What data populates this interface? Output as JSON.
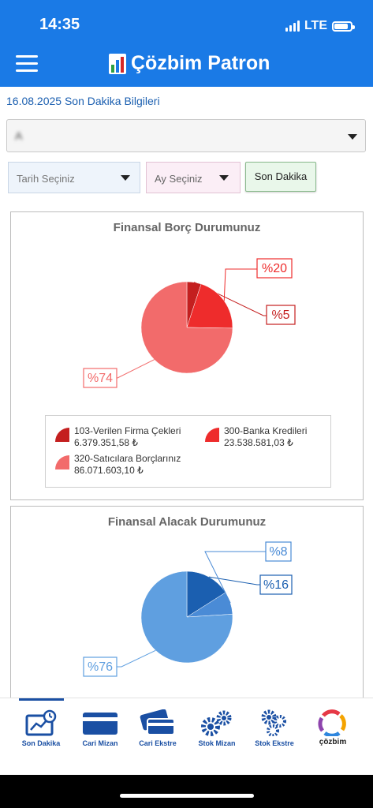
{
  "status_bar": {
    "time": "14:35",
    "network": "LTE"
  },
  "header": {
    "title": "Çözbim Patron"
  },
  "date_line": "16.08.2025 Son Dakika Bilgileri",
  "company_select": {
    "value": "A"
  },
  "filters": {
    "date_placeholder": "Tarih Seçiniz",
    "month_placeholder": "Ay Seçiniz",
    "son_dakika_label": "Son Dakika"
  },
  "colors": {
    "header": "#1a7ae6",
    "debt_dark": "#c41f1f",
    "debt_mid": "#ee2c2c",
    "debt_light": "#f26b6b",
    "recv_light": "#5f9fe0",
    "recv_mid": "#4a8bd6",
    "recv_dark": "#1b5fb0"
  },
  "chart_data": [
    {
      "type": "pie",
      "title": "Finansal Borç Durumunuz",
      "slices": [
        {
          "name": "103-Verilen Firma Çekleri",
          "amount": "6.379.351,58 ₺",
          "label": "%5",
          "percent": 5,
          "color": "#c41f1f"
        },
        {
          "name": "300-Banka Kredileri",
          "amount": "23.538.581,03 ₺",
          "label": "%20",
          "percent": 20,
          "color": "#ee2c2c"
        },
        {
          "name": "320-Satıcılara Borçlarınız",
          "amount": "86.071.603,10 ₺",
          "label": "%74",
          "percent": 74,
          "color": "#f26b6b"
        }
      ]
    },
    {
      "type": "pie",
      "title": "Finansal Alacak Durumunuz",
      "slices": [
        {
          "label": "%16",
          "percent": 16,
          "color": "#1b5fb0"
        },
        {
          "label": "%8",
          "percent": 8,
          "color": "#4a8bd6"
        },
        {
          "label": "%76",
          "percent": 76,
          "color": "#5f9fe0"
        }
      ]
    }
  ],
  "tabs": [
    {
      "label": "Son Dakika",
      "icon": "dashboard-icon",
      "active": true
    },
    {
      "label": "Cari Mizan",
      "icon": "card-icon"
    },
    {
      "label": "Cari Ekstre",
      "icon": "cards-icon"
    },
    {
      "label": "Stok Mizan",
      "icon": "gears-icon"
    },
    {
      "label": "Stok Ekstre",
      "icon": "gears-stack-icon"
    },
    {
      "label": "çözbim",
      "icon": "cozbim-logo-icon"
    }
  ]
}
